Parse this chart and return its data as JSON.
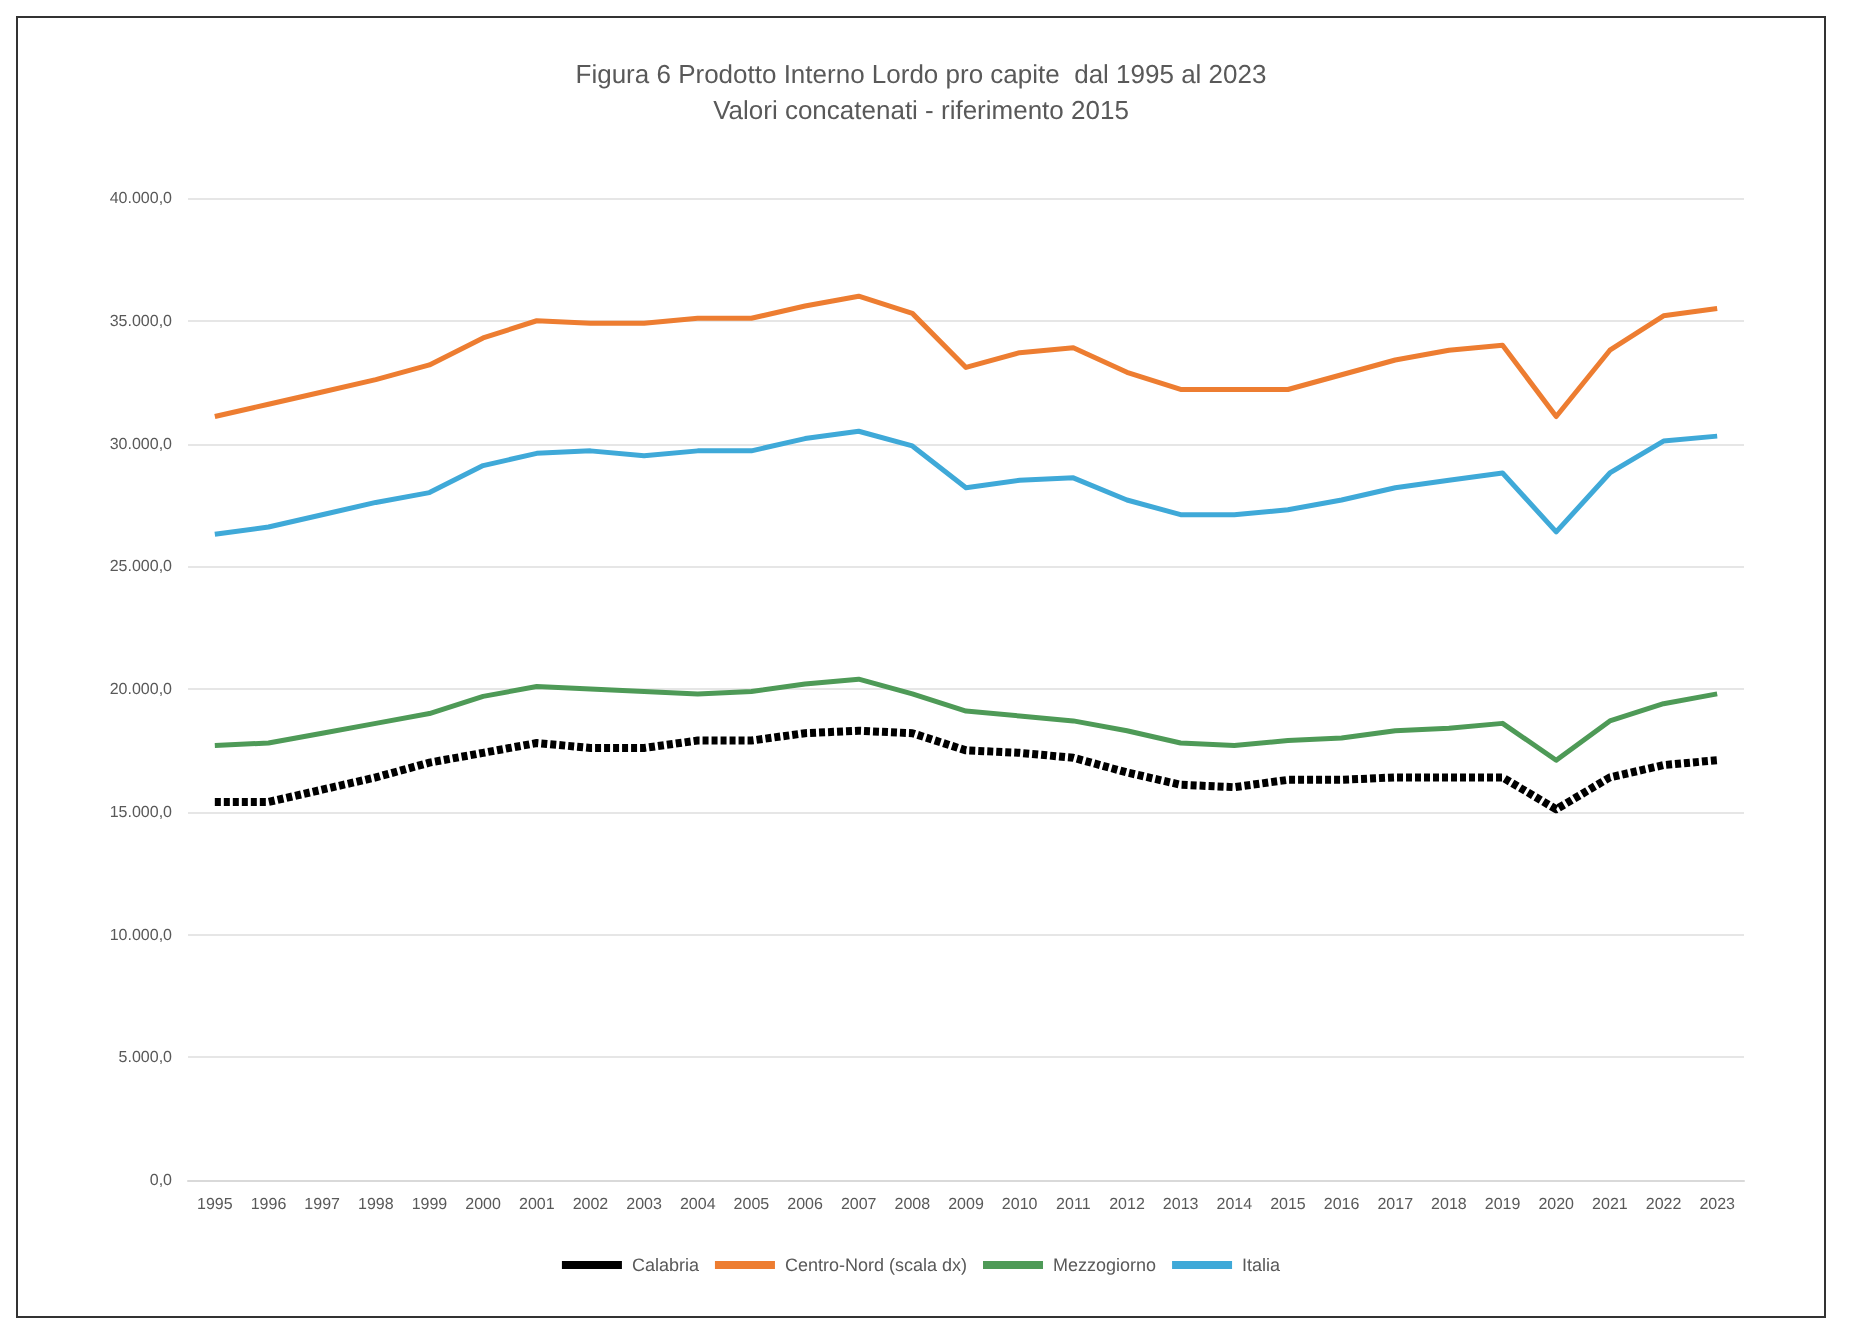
{
  "chart_data": {
    "type": "line",
    "title": "Figura 6 Prodotto Interno Lordo pro capite  dal 1995 al 2023\nValori concatenati - riferimento 2015",
    "categories": [
      "1995",
      "1996",
      "1997",
      "1998",
      "1999",
      "2000",
      "2001",
      "2002",
      "2003",
      "2004",
      "2005",
      "2006",
      "2007",
      "2008",
      "2009",
      "2010",
      "2011",
      "2012",
      "2013",
      "2014",
      "2015",
      "2016",
      "2017",
      "2018",
      "2019",
      "2020",
      "2021",
      "2022",
      "2023"
    ],
    "series": [
      {
        "name": "Calabria",
        "color": "#000000",
        "line_style": "dashed",
        "values": [
          15400,
          15400,
          15900,
          16400,
          17000,
          17400,
          17800,
          17600,
          17600,
          17900,
          17900,
          18200,
          18300,
          18200,
          17500,
          17400,
          17200,
          16600,
          16100,
          16000,
          16300,
          16300,
          16400,
          16400,
          16400,
          15100,
          16400,
          16900,
          17100
        ]
      },
      {
        "name": "Centro-Nord (scala dx)",
        "color": "#ed7d31",
        "line_style": "solid",
        "values": [
          31100,
          31600,
          32100,
          32600,
          33200,
          34300,
          35000,
          34900,
          34900,
          35100,
          35100,
          35600,
          36000,
          35300,
          33100,
          33700,
          33900,
          32900,
          32200,
          32200,
          32200,
          32800,
          33400,
          33800,
          34000,
          31100,
          33800,
          35200,
          35500
        ]
      },
      {
        "name": "Mezzogiorno",
        "color": "#4e9a57",
        "line_style": "solid",
        "values": [
          17700,
          17800,
          18200,
          18600,
          19000,
          19700,
          20100,
          20000,
          19900,
          19800,
          19900,
          20200,
          20400,
          19800,
          19100,
          18900,
          18700,
          18300,
          17800,
          17700,
          17900,
          18000,
          18300,
          18400,
          18600,
          17100,
          18700,
          19400,
          19800
        ]
      },
      {
        "name": "Italia",
        "color": "#3fa9d8",
        "line_style": "solid",
        "values": [
          26300,
          26600,
          27100,
          27600,
          28000,
          29100,
          29600,
          29700,
          29500,
          29700,
          29700,
          30200,
          30500,
          29900,
          28200,
          28500,
          28600,
          27700,
          27100,
          27100,
          27300,
          27700,
          28200,
          28500,
          28800,
          26400,
          28800,
          30100,
          30300
        ]
      }
    ],
    "ylim": [
      0,
      40000
    ],
    "yticks": [
      {
        "value": 0,
        "label": "0,0"
      },
      {
        "value": 5000,
        "label": "5.000,0"
      },
      {
        "value": 10000,
        "label": "10.000,0"
      },
      {
        "value": 15000,
        "label": "15.000,0"
      },
      {
        "value": 20000,
        "label": "20.000,0"
      },
      {
        "value": 25000,
        "label": "25.000,0"
      },
      {
        "value": 30000,
        "label": "30.000,0"
      },
      {
        "value": 35000,
        "label": "35.000,0"
      },
      {
        "value": 40000,
        "label": "40.000,0"
      }
    ],
    "grid": "y",
    "legend": "bottom",
    "marker": "none"
  }
}
